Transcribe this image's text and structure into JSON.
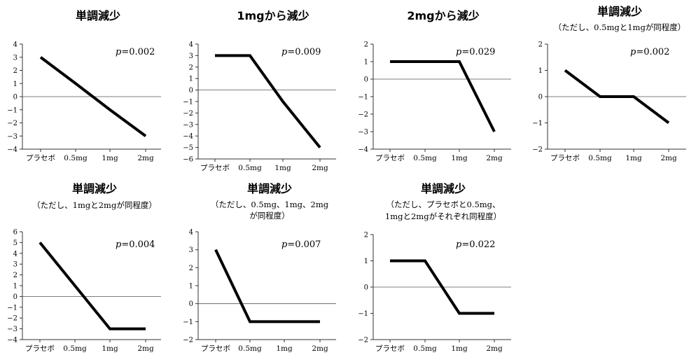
{
  "chart_data": [
    {
      "type": "line",
      "title": "単調減少",
      "subtitle": [],
      "annotation_p": "p",
      "annotation_val": "=0.002",
      "categories": [
        "プラセボ",
        "0.5mg",
        "1mg",
        "2mg"
      ],
      "values": [
        3,
        1,
        -1,
        -3
      ],
      "ylim": [
        -4,
        4
      ],
      "yticks": [
        -4,
        -3,
        -2,
        -1,
        0,
        1,
        2,
        3,
        4
      ]
    },
    {
      "type": "line",
      "title": "1mgから減少",
      "subtitle": [],
      "annotation_p": "p",
      "annotation_val": "=0.009",
      "categories": [
        "プラセボ",
        "0.5mg",
        "1mg",
        "2mg"
      ],
      "values": [
        3,
        3,
        -1,
        -5
      ],
      "ylim": [
        -6,
        4
      ],
      "yticks": [
        -6,
        -5,
        -4,
        -3,
        -2,
        -1,
        0,
        1,
        2,
        3,
        4
      ]
    },
    {
      "type": "line",
      "title": "2mgから減少",
      "subtitle": [],
      "annotation_p": "p",
      "annotation_val": "=0.029",
      "categories": [
        "プラセボ",
        "0.5mg",
        "1mg",
        "2mg"
      ],
      "values": [
        1,
        1,
        1,
        -3
      ],
      "ylim": [
        -4,
        2
      ],
      "yticks": [
        -4,
        -3,
        -2,
        -1,
        0,
        1,
        2
      ]
    },
    {
      "type": "line",
      "title": "単調減少",
      "subtitle": [
        "（ただし、0.5mgと1mgが同程度）"
      ],
      "annotation_p": "p",
      "annotation_val": "=0.002",
      "categories": [
        "プラセボ",
        "0.5mg",
        "1mg",
        "2mg"
      ],
      "values": [
        1,
        0,
        0,
        -1
      ],
      "ylim": [
        -2,
        2
      ],
      "yticks": [
        -2,
        -1,
        0,
        1,
        2
      ]
    },
    {
      "type": "line",
      "title": "単調減少",
      "subtitle": [
        "（ただし、1mgと2mgが同程度）"
      ],
      "annotation_p": "p",
      "annotation_val": "=0.004",
      "categories": [
        "プラセボ",
        "0.5mg",
        "1mg",
        "2mg"
      ],
      "values": [
        5,
        1,
        -3,
        -3
      ],
      "ylim": [
        -4,
        6
      ],
      "yticks": [
        -4,
        -3,
        -2,
        -1,
        0,
        1,
        2,
        3,
        4,
        5,
        6
      ]
    },
    {
      "type": "line",
      "title": "単調減少",
      "subtitle": [
        "（ただし、0.5mg、1mg、2mg",
        "が同程度）"
      ],
      "annotation_p": "p",
      "annotation_val": "=0.007",
      "categories": [
        "プラセボ",
        "0.5mg",
        "1mg",
        "2mg"
      ],
      "values": [
        3,
        -1,
        -1,
        -1
      ],
      "ylim": [
        -2,
        4
      ],
      "yticks": [
        -2,
        -1,
        0,
        1,
        2,
        3,
        4
      ]
    },
    {
      "type": "line",
      "title": "単調減少",
      "subtitle": [
        "（ただし、プラセボと0.5mg、",
        "1mgと2mgがそれぞれ同程度）"
      ],
      "annotation_p": "p",
      "annotation_val": "=0.022",
      "categories": [
        "プラセボ",
        "0.5mg",
        "1mg",
        "2mg"
      ],
      "values": [
        1,
        1,
        -1,
        -1
      ],
      "ylim": [
        -2,
        2
      ],
      "yticks": [
        -2,
        -1,
        0,
        1,
        2
      ]
    }
  ]
}
